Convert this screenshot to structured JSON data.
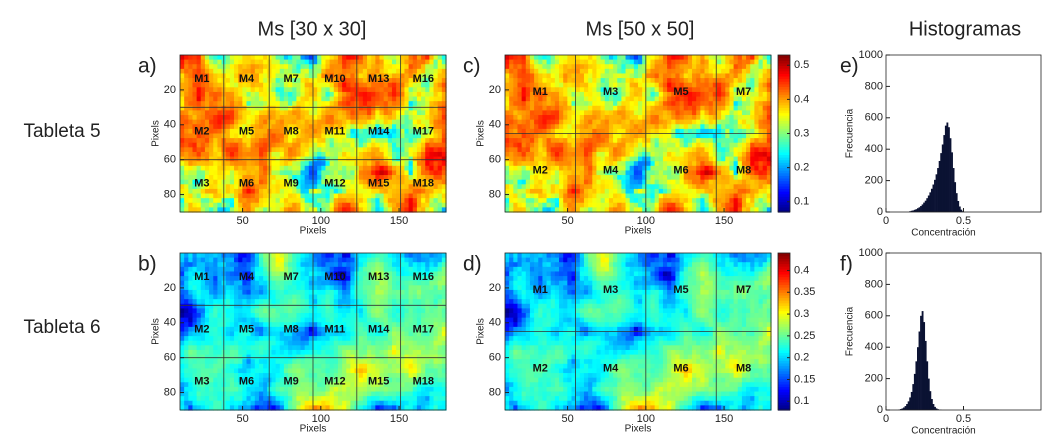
{
  "column_titles": [
    "Ms [30 x 30]",
    "Ms [50 x 50]",
    "Histogramas"
  ],
  "row_labels": [
    "Tableta 5",
    "Tableta 6"
  ],
  "chart_data": [
    {
      "type": "heatmap",
      "panel_label": "a)",
      "xlabel": "Pixels",
      "ylabel": "Pixels",
      "colormap": "jet",
      "xlim": [
        10,
        180
      ],
      "ylim": [
        0,
        90
      ],
      "xticks": [
        50,
        100,
        150
      ],
      "yticks": [
        20,
        40,
        60,
        80
      ],
      "clim": [
        0.07,
        0.53
      ],
      "colorbar": false,
      "block_lines_x": [
        38,
        67,
        95,
        123,
        151
      ],
      "block_lines_y": [
        30,
        60
      ],
      "regions": [
        "M1",
        "M2",
        "M3",
        "M4",
        "M5",
        "M6",
        "M7",
        "M8",
        "M9",
        "M10",
        "M11",
        "M12",
        "M13",
        "M14",
        "M15",
        "M16",
        "M17",
        "M18"
      ]
    },
    {
      "type": "heatmap",
      "panel_label": "b)",
      "xlabel": "Pixels",
      "ylabel": "Pixels",
      "colormap": "jet",
      "xlim": [
        10,
        180
      ],
      "ylim": [
        0,
        90
      ],
      "xticks": [
        50,
        100,
        150
      ],
      "yticks": [
        20,
        40,
        60,
        80
      ],
      "clim": [
        0.08,
        0.44
      ],
      "colorbar": false,
      "block_lines_x": [
        38,
        67,
        95,
        123,
        151
      ],
      "block_lines_y": [
        30,
        60
      ],
      "regions": [
        "M1",
        "M2",
        "M3",
        "M4",
        "M5",
        "M6",
        "M7",
        "M8",
        "M9",
        "M10",
        "M11",
        "M12",
        "M13",
        "M14",
        "M15",
        "M16",
        "M17",
        "M18"
      ]
    },
    {
      "type": "heatmap",
      "panel_label": "c)",
      "xlabel": "Pixels",
      "ylabel": "Pixels",
      "colormap": "jet",
      "xlim": [
        10,
        180
      ],
      "ylim": [
        0,
        90
      ],
      "xticks": [
        50,
        100,
        150
      ],
      "yticks": [
        20,
        40,
        60,
        80
      ],
      "clim": [
        0.07,
        0.53
      ],
      "colorbar": true,
      "cticks": [
        0.1,
        0.2,
        0.3,
        0.4,
        0.5
      ],
      "block_lines_x": [
        55,
        100,
        145
      ],
      "block_lines_y": [
        45
      ],
      "regions": [
        "M1",
        "M2",
        "M3",
        "M4",
        "M5",
        "M6",
        "M7",
        "M8"
      ]
    },
    {
      "type": "heatmap",
      "panel_label": "d)",
      "xlabel": "Pixels",
      "ylabel": "Pixels",
      "colormap": "jet",
      "xlim": [
        10,
        180
      ],
      "ylim": [
        0,
        90
      ],
      "xticks": [
        50,
        100,
        150
      ],
      "yticks": [
        20,
        40,
        60,
        80
      ],
      "clim": [
        0.08,
        0.44
      ],
      "colorbar": true,
      "cticks": [
        0.1,
        0.15,
        0.2,
        0.25,
        0.3,
        0.35,
        0.4
      ],
      "block_lines_x": [
        55,
        100,
        145
      ],
      "block_lines_y": [
        45
      ],
      "regions": [
        "M1",
        "M2",
        "M3",
        "M4",
        "M5",
        "M6",
        "M7",
        "M8"
      ]
    },
    {
      "type": "histogram",
      "panel_label": "e)",
      "xlabel": "Concentración",
      "ylabel": "Frecuencia",
      "color": "#0b1233",
      "xlim": [
        0,
        1
      ],
      "ylim": [
        0,
        1000
      ],
      "xticks": [
        0,
        0.5
      ],
      "yticks": [
        0,
        200,
        400,
        600,
        800,
        1000
      ],
      "bins": [
        0.15,
        0.16,
        0.17,
        0.18,
        0.19,
        0.2,
        0.21,
        0.22,
        0.23,
        0.24,
        0.25,
        0.26,
        0.27,
        0.28,
        0.29,
        0.3,
        0.31,
        0.32,
        0.33,
        0.34,
        0.35,
        0.36,
        0.37,
        0.38,
        0.39,
        0.4,
        0.41,
        0.42,
        0.43,
        0.44,
        0.45,
        0.46,
        0.47,
        0.48,
        0.49,
        0.5
      ],
      "counts": [
        5,
        8,
        10,
        14,
        18,
        24,
        30,
        38,
        48,
        60,
        72,
        88,
        105,
        125,
        148,
        175,
        205,
        240,
        280,
        325,
        375,
        430,
        490,
        550,
        570,
        540,
        470,
        380,
        280,
        190,
        120,
        70,
        35,
        15,
        5
      ]
    },
    {
      "type": "histogram",
      "panel_label": "f)",
      "xlabel": "Concentración",
      "ylabel": "Frecuencia",
      "color": "#0b1233",
      "xlim": [
        0,
        1
      ],
      "ylim": [
        0,
        1000
      ],
      "xticks": [
        0,
        0.5
      ],
      "yticks": [
        0,
        200,
        400,
        600,
        800,
        1000
      ],
      "bins": [
        0.08,
        0.09,
        0.1,
        0.11,
        0.12,
        0.13,
        0.14,
        0.15,
        0.16,
        0.17,
        0.18,
        0.19,
        0.2,
        0.21,
        0.22,
        0.23,
        0.24,
        0.25,
        0.26,
        0.27,
        0.28,
        0.29,
        0.3,
        0.31,
        0.32,
        0.33,
        0.34,
        0.35,
        0.36
      ],
      "counts": [
        3,
        6,
        10,
        16,
        25,
        38,
        55,
        80,
        115,
        165,
        230,
        310,
        400,
        500,
        600,
        630,
        560,
        440,
        310,
        200,
        120,
        70,
        38,
        20,
        10,
        5,
        2,
        1
      ]
    }
  ]
}
